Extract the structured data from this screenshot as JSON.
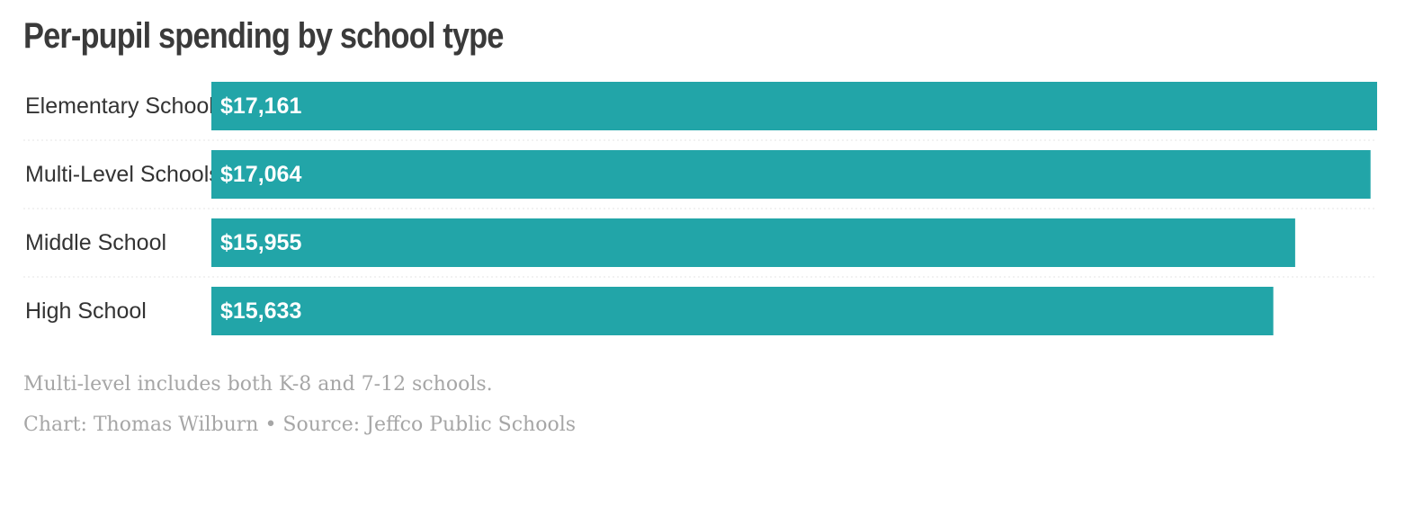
{
  "title": "Per-pupil spending by school type",
  "note": "Multi-level includes both K-8 and 7-12 schools.",
  "credit": "Chart: Thomas Wilburn • Source: Jeffco Public Schools",
  "colors": {
    "bar": "#22a5a8",
    "separator": "#e6e6e6"
  },
  "chart_data": {
    "type": "bar",
    "orientation": "horizontal",
    "categories": [
      "Elementary School",
      "Multi-Level Schools",
      "Middle School",
      "High School"
    ],
    "values": [
      17161,
      17064,
      15955,
      15633
    ],
    "value_labels": [
      "$17,161",
      "$17,064",
      "$15,955",
      "$15,633"
    ],
    "xlim": [
      0,
      17161
    ],
    "grid": false,
    "legend": "none"
  }
}
